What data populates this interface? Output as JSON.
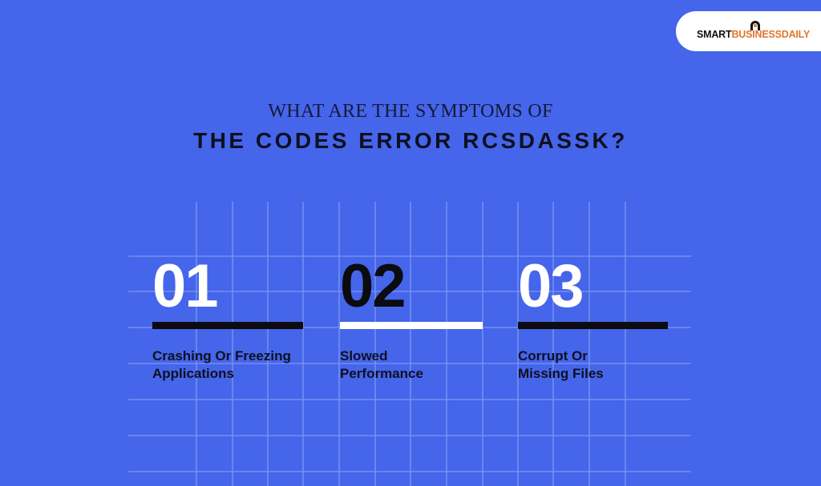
{
  "logo": {
    "first": "SMART",
    "second": "BUSINESSDAILY"
  },
  "header": {
    "title_line_1": "WHAT ARE THE SYMPTOMS OF",
    "title_line_2": "THE CODES ERROR RCSDASSK?"
  },
  "items": [
    {
      "number": "01",
      "label_lines": [
        "Crashing Or Freezing",
        "Applications"
      ]
    },
    {
      "number": "02",
      "label_lines": [
        "Slowed",
        "Performance"
      ]
    },
    {
      "number": "03",
      "label_lines": [
        "Corrupt Or",
        "Missing Files"
      ]
    }
  ]
}
